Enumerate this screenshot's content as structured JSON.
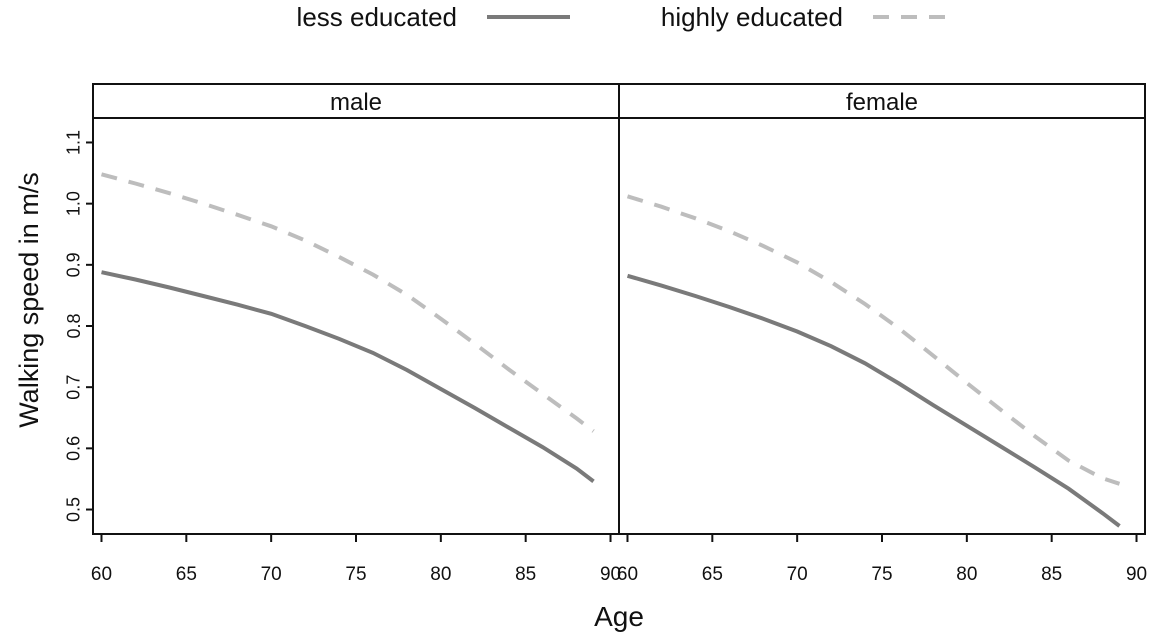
{
  "chart_data": {
    "type": "line",
    "legend": {
      "position": "top",
      "entries": [
        {
          "label": "less educated",
          "color": "#7a7a7a",
          "dash": "solid"
        },
        {
          "label": "highly educated",
          "color": "#bdbdbd",
          "dash": "dashed"
        }
      ]
    },
    "xlabel": "Age",
    "ylabel": "Walking speed in m/s",
    "xlim": [
      59.5,
      90.5
    ],
    "ylim": [
      0.46,
      1.14
    ],
    "x_ticks": [
      "60",
      "65",
      "70",
      "75",
      "80",
      "85",
      "90"
    ],
    "y_ticks": [
      "0.5",
      "0.6",
      "0.7",
      "0.8",
      "0.9",
      "1.0",
      "1.1"
    ],
    "grid": false,
    "panels": [
      {
        "strip_label": "male",
        "series": [
          {
            "name": "less educated",
            "x": [
              60,
              62,
              64,
              66,
              68,
              70,
              72,
              74,
              76,
              78,
              80,
              82,
              84,
              86,
              88,
              89
            ],
            "values": [
              0.888,
              0.876,
              0.863,
              0.849,
              0.835,
              0.82,
              0.8,
              0.779,
              0.756,
              0.728,
              0.697,
              0.666,
              0.634,
              0.602,
              0.567,
              0.546
            ]
          },
          {
            "name": "highly educated",
            "x": [
              60,
              62,
              64,
              66,
              68,
              70,
              72,
              74,
              76,
              78,
              80,
              82,
              84,
              86,
              88,
              89
            ],
            "values": [
              1.048,
              1.033,
              1.017,
              1.0,
              0.982,
              0.963,
              0.94,
              0.913,
              0.884,
              0.851,
              0.812,
              0.771,
              0.729,
              0.689,
              0.649,
              0.628
            ]
          }
        ]
      },
      {
        "strip_label": "female",
        "series": [
          {
            "name": "less educated",
            "x": [
              60,
              62,
              64,
              66,
              68,
              70,
              72,
              74,
              76,
              78,
              80,
              82,
              84,
              86,
              88,
              89
            ],
            "values": [
              0.882,
              0.866,
              0.849,
              0.831,
              0.812,
              0.791,
              0.767,
              0.739,
              0.706,
              0.671,
              0.637,
              0.603,
              0.569,
              0.534,
              0.494,
              0.473
            ]
          },
          {
            "name": "highly educated",
            "x": [
              60,
              62,
              64,
              66,
              68,
              70,
              72,
              74,
              76,
              78,
              80,
              82,
              84,
              86,
              88,
              89
            ],
            "values": [
              1.012,
              0.995,
              0.976,
              0.955,
              0.931,
              0.904,
              0.872,
              0.836,
              0.796,
              0.752,
              0.707,
              0.663,
              0.62,
              0.58,
              0.551,
              0.542
            ]
          }
        ]
      }
    ]
  }
}
